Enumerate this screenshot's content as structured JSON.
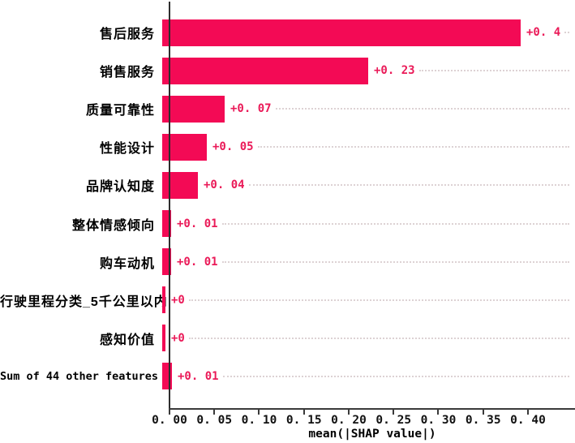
{
  "chart_data": {
    "type": "bar",
    "orientation": "horizontal",
    "title": "",
    "xlabel": "mean(|SHAP value|)",
    "bar_color": "#f30a55",
    "value_label_color": "#ea1a58",
    "grid": {
      "style": "dotted",
      "direction": "horizontal",
      "color": "#ddd2d4"
    },
    "xlim": [
      0,
      0.4525
    ],
    "x_ticks": [
      0.0,
      0.05,
      0.1,
      0.15,
      0.2,
      0.25,
      0.3,
      0.35,
      0.4
    ],
    "x_tick_labels": [
      "0. 00",
      "0. 05",
      "0. 10",
      "0. 15",
      "0. 20",
      "0. 25",
      "0. 30",
      "0. 35",
      "0. 40"
    ],
    "categories": [
      "售后服务",
      "销售服务",
      "质量可靠性",
      "性能设计",
      "品牌认知度",
      "整体情感倾向",
      "购车动机",
      "行驶里程分类_5千公里以内",
      "感知价值",
      "Sum of 44 other features"
    ],
    "values": [
      0.4,
      0.23,
      0.07,
      0.05,
      0.04,
      0.01,
      0.01,
      0.004,
      0.004,
      0.011
    ],
    "value_labels": [
      "+0. 4",
      "+0. 23",
      "+0. 07",
      "+0. 05",
      "+0. 04",
      "+0. 01",
      "+0. 01",
      "+0",
      "+0",
      "+0. 01"
    ]
  }
}
